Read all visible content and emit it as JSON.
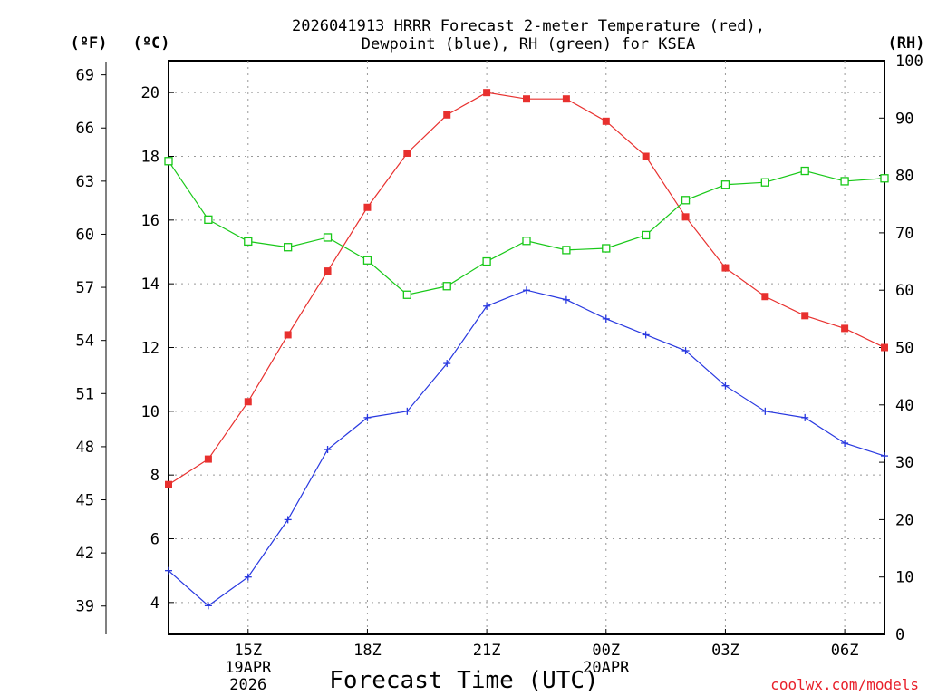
{
  "chart_data": {
    "type": "line",
    "title_line1": "2026041913 HRRR Forecast 2-meter Temperature (red),",
    "title_line2": "Dewpoint (blue), RH (green) for KSEA",
    "xlabel": "Forecast Time (UTC)",
    "footer": "coolwx.com/models",
    "units": {
      "fahrenheit": "(ºF)",
      "celsius": "(ºC)",
      "rh": "(RH)"
    },
    "x_hours": [
      "13Z",
      "14Z",
      "15Z",
      "16Z",
      "17Z",
      "18Z",
      "19Z",
      "20Z",
      "21Z",
      "22Z",
      "23Z",
      "00Z",
      "01Z",
      "02Z",
      "03Z",
      "04Z",
      "05Z",
      "06Z",
      "07Z"
    ],
    "x_ticks": [
      {
        "index": 2,
        "label": "15Z",
        "date": "19APR",
        "year": "2026"
      },
      {
        "index": 5,
        "label": "18Z"
      },
      {
        "index": 8,
        "label": "21Z"
      },
      {
        "index": 11,
        "label": "00Z",
        "date": "20APR"
      },
      {
        "index": 14,
        "label": "03Z"
      },
      {
        "index": 17,
        "label": "06Z"
      }
    ],
    "ylim_celsius": [
      3,
      21
    ],
    "ylim_rh": [
      0,
      100
    ],
    "celsius_ticks": [
      4,
      6,
      8,
      10,
      12,
      14,
      16,
      18,
      20
    ],
    "fahrenheit_ticks": [
      39,
      42,
      45,
      48,
      51,
      54,
      57,
      60,
      63,
      66,
      69
    ],
    "rh_ticks": [
      0,
      10,
      20,
      30,
      40,
      50,
      60,
      70,
      80,
      90,
      100
    ],
    "grid": true,
    "series": [
      {
        "name": "2-meter Temperature",
        "unit": "C",
        "color": "#e8302e",
        "marker": "filled-square",
        "values": [
          7.7,
          8.5,
          10.3,
          12.4,
          14.4,
          16.4,
          18.1,
          19.3,
          20.0,
          19.8,
          19.8,
          19.1,
          18.0,
          16.1,
          14.5,
          13.6,
          13.0,
          12.6,
          12.0
        ]
      },
      {
        "name": "Dewpoint",
        "unit": "C",
        "color": "#2838e0",
        "marker": "plus",
        "values": [
          5.0,
          3.9,
          4.8,
          6.6,
          8.8,
          9.8,
          10.0,
          11.5,
          13.3,
          13.8,
          13.5,
          12.9,
          12.4,
          11.9,
          10.8,
          10.0,
          9.8,
          9.0,
          8.6
        ]
      },
      {
        "name": "RH",
        "unit": "%",
        "color": "#18c818",
        "marker": "open-square",
        "values": [
          82.5,
          72.3,
          68.5,
          67.5,
          69.2,
          65.2,
          59.2,
          60.7,
          65.0,
          68.6,
          67.0,
          67.3,
          69.6,
          75.7,
          78.4,
          78.8,
          80.8,
          79.0,
          79.5
        ]
      }
    ]
  }
}
